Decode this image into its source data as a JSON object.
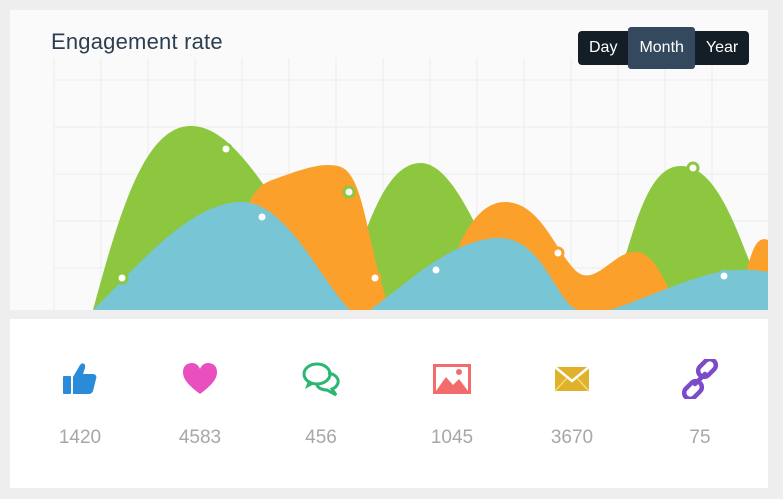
{
  "chart": {
    "title": "Engagement rate",
    "periods": [
      "Day",
      "Month",
      "Year"
    ],
    "active_period": "Month",
    "colors": {
      "green": "#8dc63f",
      "orange": "#fba12b",
      "blue": "#78c5d5",
      "grid": "#ececec"
    }
  },
  "stats": [
    {
      "icon": "thumbs-up-icon",
      "value": "1420",
      "color": "#2a8bd8"
    },
    {
      "icon": "heart-icon",
      "value": "4583",
      "color": "#ea4fc0"
    },
    {
      "icon": "chat-bubbles-icon",
      "value": "456",
      "color": "#2bb673"
    },
    {
      "icon": "image-icon",
      "value": "1045",
      "color": "#f26c6c"
    },
    {
      "icon": "envelope-icon",
      "value": "3670",
      "color": "#e0b12a"
    },
    {
      "icon": "link-icon",
      "value": "75",
      "color": "#7c4bc9"
    }
  ]
}
